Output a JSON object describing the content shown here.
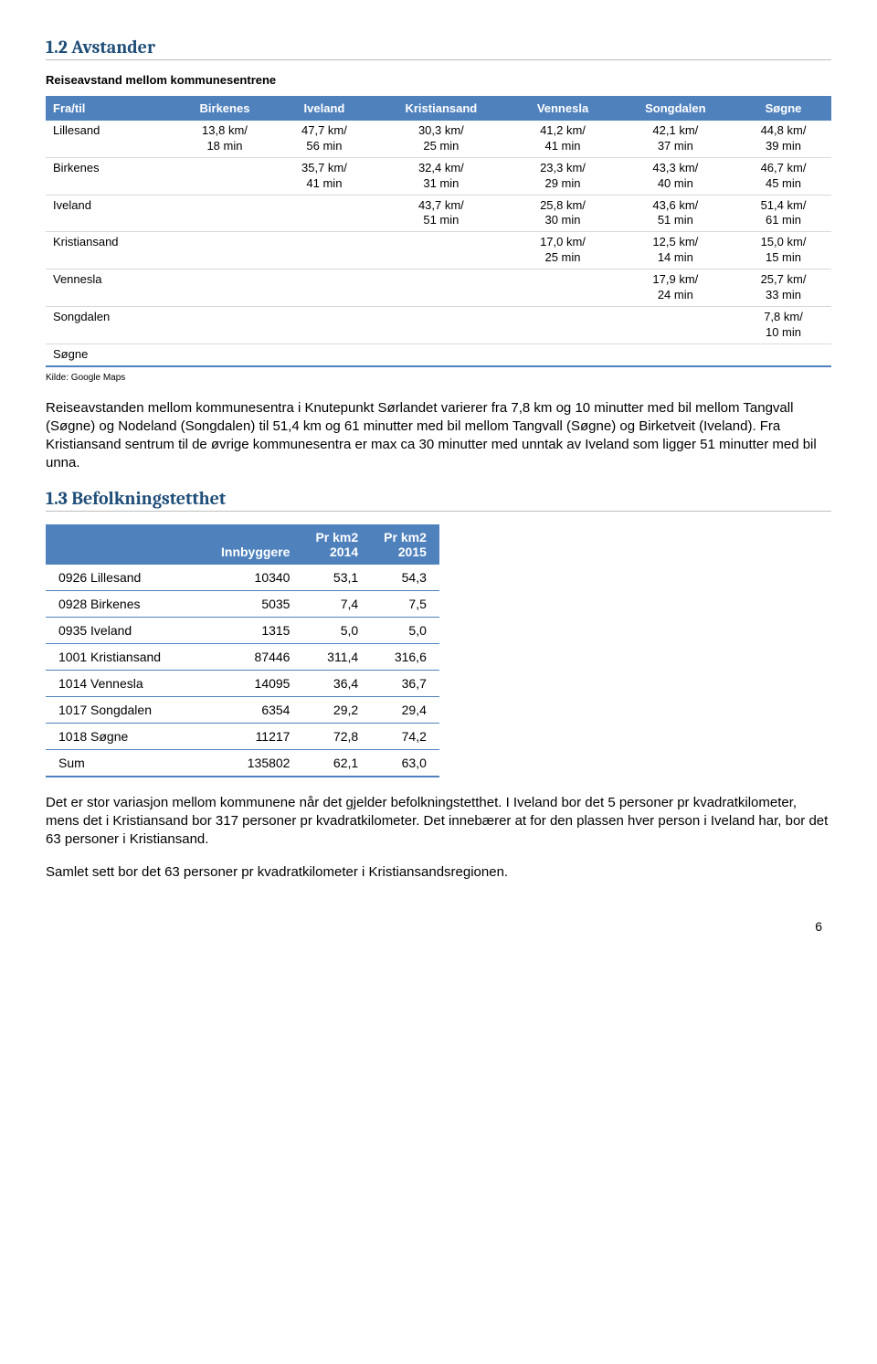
{
  "section1": {
    "title": "1.2 Avstander",
    "subtitle": "Reiseavstand mellom kommunesentrene",
    "headers": [
      "Fra/til",
      "Birkenes",
      "Iveland",
      "Kristiansand",
      "Vennesla",
      "Songdalen",
      "Søgne"
    ],
    "rows": [
      {
        "label": "Lillesand",
        "cells": [
          "13,8 km/\n18 min",
          "47,7 km/\n56 min",
          "30,3 km/\n25 min",
          "41,2 km/\n41 min",
          "42,1 km/\n37 min",
          "44,8 km/\n39 min"
        ]
      },
      {
        "label": "Birkenes",
        "cells": [
          "",
          "35,7 km/\n41 min",
          "32,4 km/\n31 min",
          "23,3 km/\n29 min",
          "43,3 km/\n40 min",
          "46,7 km/\n45 min"
        ]
      },
      {
        "label": "Iveland",
        "cells": [
          "",
          "",
          "43,7 km/\n51 min",
          "25,8 km/\n30 min",
          "43,6 km/\n51 min",
          "51,4 km/\n61 min"
        ]
      },
      {
        "label": "Kristiansand",
        "cells": [
          "",
          "",
          "",
          "17,0 km/\n25 min",
          "12,5 km/\n14 min",
          "15,0 km/\n15 min"
        ]
      },
      {
        "label": "Vennesla",
        "cells": [
          "",
          "",
          "",
          "",
          "17,9 km/\n24 min",
          "25,7 km/\n33 min"
        ]
      },
      {
        "label": "Songdalen",
        "cells": [
          "",
          "",
          "",
          "",
          "",
          "7,8 km/\n10 min"
        ]
      },
      {
        "label": "Søgne",
        "cells": [
          "",
          "",
          "",
          "",
          "",
          ""
        ]
      }
    ],
    "source": "Kilde: Google Maps",
    "paragraph": "Reiseavstanden mellom kommunesentra i Knutepunkt Sørlandet varierer fra 7,8 km og 10 minutter med bil mellom Tangvall (Søgne) og Nodeland (Songdalen) til 51,4 km og 61 minutter med bil mellom Tangvall (Søgne) og Birketveit (Iveland). Fra Kristiansand sentrum til de øvrige kommunesentra er max ca 30 minutter med unntak av Iveland som ligger 51 minutter med bil unna."
  },
  "section2": {
    "title": "1.3 Befolkningstetthet",
    "headers": [
      "",
      "Innbyggere",
      "Pr km2\n2014",
      "Pr km2\n2015"
    ],
    "rows": [
      {
        "label": "0926 Lillesand",
        "cells": [
          "10340",
          "53,1",
          "54,3"
        ]
      },
      {
        "label": "0928 Birkenes",
        "cells": [
          "5035",
          "7,4",
          "7,5"
        ]
      },
      {
        "label": "0935 Iveland",
        "cells": [
          "1315",
          "5,0",
          "5,0"
        ]
      },
      {
        "label": "1001 Kristiansand",
        "cells": [
          "87446",
          "311,4",
          "316,6"
        ]
      },
      {
        "label": "1014 Vennesla",
        "cells": [
          "14095",
          "36,4",
          "36,7"
        ]
      },
      {
        "label": "1017 Songdalen",
        "cells": [
          "6354",
          "29,2",
          "29,4"
        ]
      },
      {
        "label": "1018 Søgne",
        "cells": [
          "11217",
          "72,8",
          "74,2"
        ]
      },
      {
        "label": "Sum",
        "cells": [
          "135802",
          "62,1",
          "63,0"
        ]
      }
    ],
    "paragraph1": "Det er stor variasjon mellom kommunene når det gjelder befolkningstetthet. I Iveland bor det 5 personer pr kvadratkilometer, mens det i Kristiansand bor 317 personer pr kvadratkilometer. Det innebærer at for den plassen hver person i Iveland har, bor det 63 personer i Kristiansand.",
    "paragraph2": "Samlet sett bor det 63 personer pr kvadratkilometer i Kristiansandsregionen."
  },
  "page_number": "6"
}
